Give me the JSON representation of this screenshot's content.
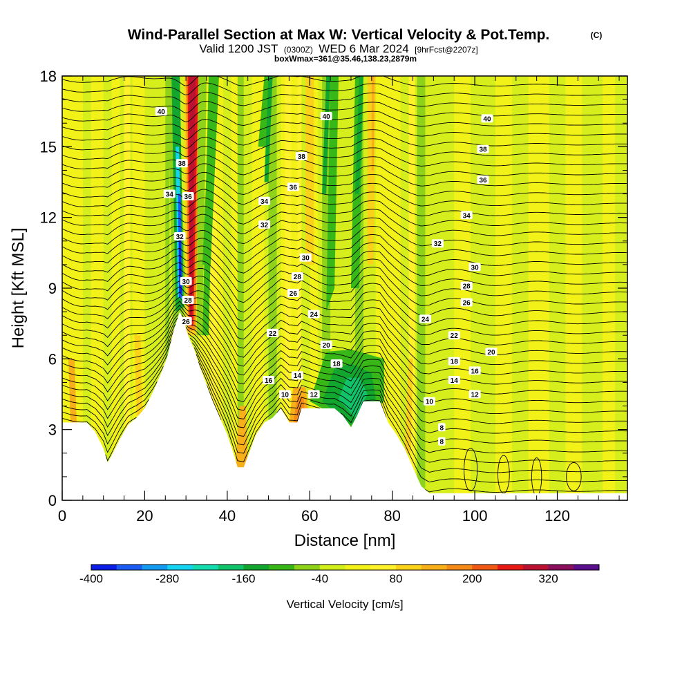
{
  "title": "Wind-Parallel Section at Max W: Vertical Velocity & Pot.Temp.",
  "copyright": "(C)",
  "valid_prefix": "Valid 1200 JST",
  "valid_utc": "(0300Z)",
  "valid_day": "WED 6 Mar 2024",
  "forecast": "[9hrFcst@2207z]",
  "box_info": "boxWmax=361@35.46,138.23,2879m",
  "chart_data": {
    "type": "heatmap",
    "xlabel": "Distance [nm]",
    "ylabel": "Height [Kft MSL]",
    "xlim": [
      0,
      137
    ],
    "ylim": [
      0,
      18
    ],
    "x_ticks": [
      "0",
      "20",
      "40",
      "60",
      "80",
      "100",
      "120"
    ],
    "y_ticks": [
      "0",
      "3",
      "6",
      "9",
      "12",
      "15",
      "18"
    ],
    "colorbar": {
      "label": "Vertical Velocity [cm/s]",
      "ticks": [
        "-400",
        "-280",
        "-160",
        "-40",
        "80",
        "200",
        "320"
      ],
      "bins": [
        -400,
        -360,
        -320,
        -280,
        -240,
        -200,
        -160,
        -120,
        -80,
        -40,
        0,
        40,
        80,
        120,
        160,
        200,
        240,
        280,
        320,
        360,
        400
      ],
      "colors": [
        "#0a1ee6",
        "#1c5cf2",
        "#159af2",
        "#14d4f2",
        "#14dcae",
        "#11c46a",
        "#12a62e",
        "#38b818",
        "#8fd21a",
        "#d2ee1a",
        "#f2f218",
        "#fff12a",
        "#fbd21a",
        "#f7b01a",
        "#f48a18",
        "#f05a16",
        "#e81a14",
        "#bb1232",
        "#8a0f5c",
        "#5a0d8c"
      ]
    },
    "terrain_profile_kft": [
      [
        0,
        3.3
      ],
      [
        3,
        3.3
      ],
      [
        6,
        3.3
      ],
      [
        8,
        2.9
      ],
      [
        10,
        2.2
      ],
      [
        11,
        1.6
      ],
      [
        12,
        1.9
      ],
      [
        14,
        2.6
      ],
      [
        16,
        3.2
      ],
      [
        18,
        3.5
      ],
      [
        20,
        3.9
      ],
      [
        22,
        4.6
      ],
      [
        24,
        5.4
      ],
      [
        25.5,
        6.1
      ],
      [
        27,
        7.2
      ],
      [
        28.5,
        8.0
      ],
      [
        29.5,
        7.6
      ],
      [
        30.5,
        7.0
      ],
      [
        32,
        6.4
      ],
      [
        33.5,
        5.6
      ],
      [
        35,
        4.9
      ],
      [
        36.5,
        4.2
      ],
      [
        38,
        3.6
      ],
      [
        40,
        2.8
      ],
      [
        41.5,
        2.0
      ],
      [
        42.5,
        1.4
      ],
      [
        44,
        1.4
      ],
      [
        45.5,
        2.1
      ],
      [
        47,
        2.8
      ],
      [
        49,
        3.3
      ],
      [
        51,
        3.5
      ],
      [
        53,
        3.9
      ],
      [
        55,
        3.3
      ],
      [
        57,
        3.3
      ],
      [
        58,
        3.9
      ],
      [
        62,
        3.9
      ],
      [
        64,
        3.9
      ],
      [
        66,
        3.9
      ],
      [
        68,
        3.6
      ],
      [
        70,
        3.1
      ],
      [
        71.5,
        3.6
      ],
      [
        73,
        4.2
      ],
      [
        75,
        4.2
      ],
      [
        77,
        4.2
      ],
      [
        79,
        3.3
      ],
      [
        81,
        2.8
      ],
      [
        83,
        2.2
      ],
      [
        85,
        1.4
      ],
      [
        87,
        0.6
      ],
      [
        89,
        0.3
      ],
      [
        100,
        0.3
      ],
      [
        115,
        0.3
      ],
      [
        137,
        0.3
      ]
    ],
    "theta_contour_labels": [
      {
        "text": "40",
        "x": 24,
        "y": 16.5
      },
      {
        "text": "40",
        "x": 64,
        "y": 16.3
      },
      {
        "text": "40",
        "x": 103,
        "y": 16.2
      },
      {
        "text": "38",
        "x": 58,
        "y": 14.6
      },
      {
        "text": "38",
        "x": 102,
        "y": 14.9
      },
      {
        "text": "38",
        "x": 29,
        "y": 14.3
      },
      {
        "text": "36",
        "x": 56,
        "y": 13.3
      },
      {
        "text": "36",
        "x": 102,
        "y": 13.6
      },
      {
        "text": "36",
        "x": 30.5,
        "y": 12.9
      },
      {
        "text": "34",
        "x": 26,
        "y": 13.0
      },
      {
        "text": "34",
        "x": 49,
        "y": 12.7
      },
      {
        "text": "34",
        "x": 98,
        "y": 12.1
      },
      {
        "text": "32",
        "x": 49,
        "y": 11.7
      },
      {
        "text": "32",
        "x": 91,
        "y": 10.9
      },
      {
        "text": "32",
        "x": 28.5,
        "y": 11.2
      },
      {
        "text": "30",
        "x": 59,
        "y": 10.3
      },
      {
        "text": "30",
        "x": 100,
        "y": 9.9
      },
      {
        "text": "30",
        "x": 30,
        "y": 9.3
      },
      {
        "text": "28",
        "x": 57,
        "y": 9.5
      },
      {
        "text": "28",
        "x": 98,
        "y": 9.1
      },
      {
        "text": "28",
        "x": 30.5,
        "y": 8.5
      },
      {
        "text": "26",
        "x": 56,
        "y": 8.8
      },
      {
        "text": "26",
        "x": 98,
        "y": 8.4
      },
      {
        "text": "26",
        "x": 30,
        "y": 7.6
      },
      {
        "text": "24",
        "x": 61,
        "y": 7.9
      },
      {
        "text": "24",
        "x": 88,
        "y": 7.7
      },
      {
        "text": "22",
        "x": 51,
        "y": 7.1
      },
      {
        "text": "22",
        "x": 95,
        "y": 7.0
      },
      {
        "text": "20",
        "x": 64,
        "y": 6.6
      },
      {
        "text": "20",
        "x": 104,
        "y": 6.3
      },
      {
        "text": "18",
        "x": 66.5,
        "y": 5.8
      },
      {
        "text": "18",
        "x": 95,
        "y": 5.9
      },
      {
        "text": "16",
        "x": 50,
        "y": 5.1
      },
      {
        "text": "16",
        "x": 100,
        "y": 5.5
      },
      {
        "text": "14",
        "x": 57,
        "y": 5.3
      },
      {
        "text": "14",
        "x": 95,
        "y": 5.1
      },
      {
        "text": "12",
        "x": 61,
        "y": 4.5
      },
      {
        "text": "12",
        "x": 100,
        "y": 4.5
      },
      {
        "text": "10",
        "x": 54,
        "y": 4.5
      },
      {
        "text": "10",
        "x": 89,
        "y": 4.2
      },
      {
        "text": "8",
        "x": 92,
        "y": 3.1
      },
      {
        "text": "8",
        "x": 92,
        "y": 2.5
      }
    ]
  }
}
